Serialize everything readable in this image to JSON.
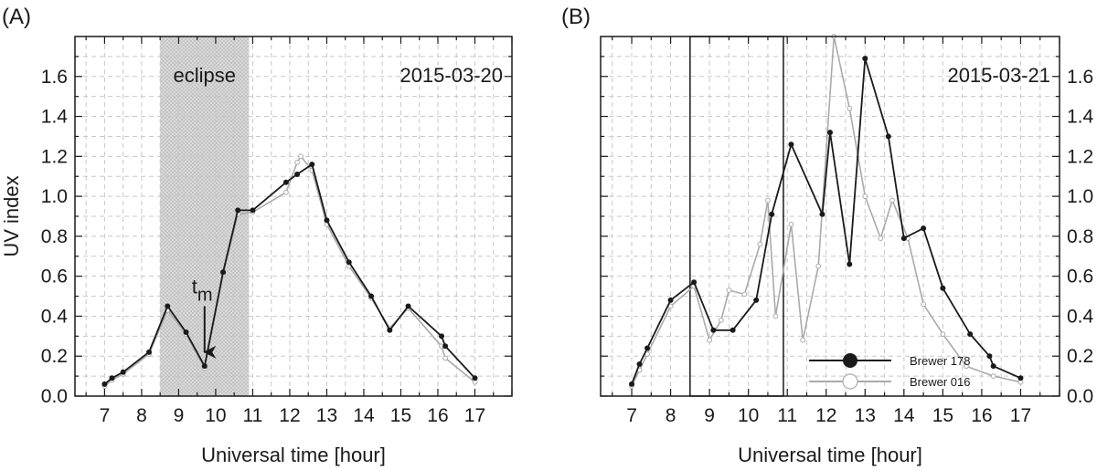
{
  "chart_data": [
    {
      "type": "line",
      "panel_label": "(A)",
      "date": "2015-03-20",
      "xlabel": "Universal time [hour]",
      "ylabel": "UV index",
      "xlim": [
        6.2,
        18.0
      ],
      "ylim": [
        0,
        1.8
      ],
      "xticks": [
        7,
        8,
        9,
        10,
        11,
        12,
        13,
        14,
        15,
        16,
        17
      ],
      "yticks": [
        0.0,
        0.2,
        0.4,
        0.6,
        0.8,
        1.0,
        1.2,
        1.4,
        1.6
      ],
      "ytick_side": "left",
      "grid": true,
      "eclipse_band": {
        "x_start": 8.5,
        "x_end": 10.9,
        "label": "eclipse"
      },
      "arrow_annotation": {
        "label": "t",
        "subscript": "m",
        "x": 9.7,
        "y_tip": 0.22,
        "y_tail": 0.45
      },
      "series": [
        {
          "name": "Brewer 178",
          "color": "#1a1a1a",
          "x": [
            7.0,
            7.2,
            7.5,
            8.2,
            8.7,
            9.2,
            9.7,
            10.2,
            10.6,
            11.0,
            11.9,
            12.2,
            12.6,
            13.0,
            13.6,
            14.2,
            14.7,
            15.2,
            16.1,
            16.2,
            17.0
          ],
          "y": [
            0.06,
            0.09,
            0.12,
            0.22,
            0.45,
            0.32,
            0.15,
            0.62,
            0.93,
            0.93,
            1.07,
            1.11,
            1.16,
            0.88,
            0.67,
            0.5,
            0.33,
            0.45,
            0.3,
            0.25,
            0.09
          ]
        },
        {
          "name": "Brewer 016",
          "color": "#aaaaaa",
          "x": [
            7.0,
            7.2,
            7.5,
            8.2,
            8.7,
            9.2,
            9.7,
            10.2,
            10.6,
            11.0,
            11.9,
            12.2,
            12.3,
            12.6,
            13.0,
            13.6,
            14.2,
            14.7,
            15.2,
            16.1,
            16.2,
            17.0
          ],
          "y": [
            0.05,
            0.08,
            0.11,
            0.21,
            0.43,
            0.31,
            0.14,
            0.61,
            0.91,
            0.92,
            1.02,
            1.17,
            1.2,
            1.13,
            0.86,
            0.65,
            0.49,
            0.34,
            0.44,
            0.25,
            0.19,
            0.07
          ]
        }
      ]
    },
    {
      "type": "line",
      "panel_label": "(B)",
      "date": "2015-03-21",
      "xlabel": "Universal time [hour]",
      "ylabel": "",
      "xlim": [
        6.2,
        18.0
      ],
      "ylim": [
        0,
        1.8
      ],
      "xticks": [
        7,
        8,
        9,
        10,
        11,
        12,
        13,
        14,
        15,
        16,
        17
      ],
      "yticks": [
        0.0,
        0.2,
        0.4,
        0.6,
        0.8,
        1.0,
        1.2,
        1.4,
        1.6
      ],
      "ytick_side": "right",
      "grid": true,
      "outline_box": {
        "x_start": 8.5,
        "x_end": 10.9
      },
      "legend": {
        "placement": "bottom-right"
      },
      "series": [
        {
          "name": "Brewer 178",
          "color": "#1a1a1a",
          "x": [
            7.0,
            7.2,
            7.4,
            8.0,
            8.6,
            9.1,
            9.6,
            10.2,
            10.6,
            11.1,
            11.9,
            12.1,
            12.6,
            13.0,
            13.6,
            14.0,
            14.5,
            15.0,
            15.7,
            16.2,
            16.3,
            17.0
          ],
          "y": [
            0.06,
            0.16,
            0.24,
            0.48,
            0.57,
            0.33,
            0.33,
            0.48,
            0.91,
            1.26,
            0.91,
            1.32,
            0.66,
            1.69,
            1.3,
            0.79,
            0.84,
            0.54,
            0.31,
            0.2,
            0.15,
            0.09
          ]
        },
        {
          "name": "Brewer 016",
          "color": "#aaaaaa",
          "x": [
            7.0,
            7.2,
            7.4,
            8.0,
            8.6,
            9.0,
            9.3,
            9.5,
            9.9,
            10.3,
            10.5,
            10.7,
            11.1,
            11.4,
            11.8,
            12.2,
            12.6,
            13.0,
            13.4,
            13.7,
            14.1,
            14.5,
            15.0,
            15.6,
            16.3,
            17.0
          ],
          "y": [
            0.05,
            0.13,
            0.21,
            0.45,
            0.55,
            0.28,
            0.38,
            0.53,
            0.51,
            0.76,
            0.98,
            0.4,
            0.86,
            0.28,
            0.65,
            1.8,
            1.44,
            1.0,
            0.79,
            0.98,
            0.79,
            0.46,
            0.31,
            0.15,
            0.1,
            0.07
          ]
        }
      ]
    }
  ]
}
